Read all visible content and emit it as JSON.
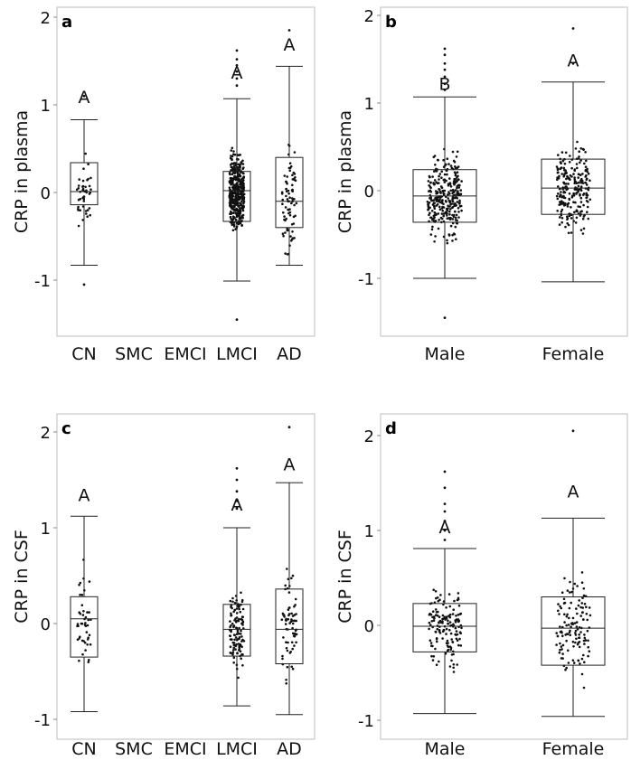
{
  "chart_data": [
    {
      "type": "box",
      "panel_label": "a",
      "ylabel": "CRP in plasma",
      "ylim": [
        -1.6,
        2.0
      ],
      "yticks": [
        -1,
        0,
        1,
        2
      ],
      "ytick_labels": [
        "-1",
        "0",
        "1",
        "2"
      ],
      "categories": [
        "CN",
        "SMC",
        "EMCI",
        "LMCI",
        "AD"
      ],
      "boxes": [
        {
          "category": "CN",
          "whisker_low": -0.83,
          "q1": -0.14,
          "median": 0.01,
          "q3": 0.34,
          "whisker_high": 0.83,
          "letter": "A",
          "letter_y": 1.02,
          "n_points": 45,
          "outliers": [
            -1.05,
            1.1
          ]
        },
        {
          "category": "LMCI",
          "whisker_low": -1.01,
          "q1": -0.33,
          "median": 0.02,
          "q3": 0.24,
          "whisker_high": 1.07,
          "letter": "A",
          "letter_y": 1.3,
          "n_points": 420,
          "outliers": [
            -1.45,
            1.22,
            1.3,
            1.38,
            1.45,
            1.52,
            1.62
          ]
        },
        {
          "category": "AD",
          "whisker_low": -0.83,
          "q1": -0.4,
          "median": -0.1,
          "q3": 0.4,
          "whisker_high": 1.44,
          "letter": "A",
          "letter_y": 1.62,
          "n_points": 80,
          "outliers": [
            1.85
          ]
        }
      ]
    },
    {
      "type": "box",
      "panel_label": "b",
      "ylabel": "CRP in plasma",
      "ylim": [
        -1.6,
        2.0
      ],
      "yticks": [
        -1,
        0,
        1,
        2
      ],
      "ytick_labels": [
        "-1",
        "0",
        "1",
        "2"
      ],
      "categories": [
        "Male",
        "Female"
      ],
      "boxes": [
        {
          "category": "Male",
          "whisker_low": -1.0,
          "q1": -0.36,
          "median": -0.06,
          "q3": 0.24,
          "whisker_high": 1.07,
          "letter": "B",
          "letter_y": 1.15,
          "n_points": 300,
          "outliers": [
            -1.45,
            1.15,
            1.22,
            1.3,
            1.38,
            1.45,
            1.55,
            1.62
          ]
        },
        {
          "category": "Female",
          "whisker_low": -1.04,
          "q1": -0.27,
          "median": 0.03,
          "q3": 0.36,
          "whisker_high": 1.24,
          "letter": "A",
          "letter_y": 1.42,
          "n_points": 240,
          "outliers": [
            1.45,
            1.85
          ]
        }
      ]
    },
    {
      "type": "box",
      "panel_label": "c",
      "ylabel": "CRP in CSF",
      "ylim": [
        -1.25,
        2.2
      ],
      "yticks": [
        -1,
        0,
        1,
        2
      ],
      "ytick_labels": [
        "-1",
        "0",
        "1",
        "2"
      ],
      "categories": [
        "CN",
        "SMC",
        "EMCI",
        "LMCI",
        "AD"
      ],
      "boxes": [
        {
          "category": "CN",
          "whisker_low": -0.92,
          "q1": -0.35,
          "median": 0.05,
          "q3": 0.28,
          "whisker_high": 1.12,
          "letter": "A",
          "letter_y": 1.28,
          "n_points": 45
        },
        {
          "category": "LMCI",
          "whisker_low": -0.86,
          "q1": -0.34,
          "median": -0.06,
          "q3": 0.2,
          "whisker_high": 1.0,
          "letter": "A",
          "letter_y": 1.18,
          "n_points": 120,
          "outliers": [
            1.2,
            1.28,
            1.38,
            1.5,
            1.62
          ]
        },
        {
          "category": "AD",
          "whisker_low": -0.95,
          "q1": -0.42,
          "median": -0.06,
          "q3": 0.36,
          "whisker_high": 1.47,
          "letter": "A",
          "letter_y": 1.6,
          "n_points": 70,
          "outliers": [
            2.05
          ]
        }
      ]
    },
    {
      "type": "box",
      "panel_label": "d",
      "ylabel": "CRP in CSF",
      "ylim": [
        -1.25,
        2.2
      ],
      "yticks": [
        -1,
        0,
        1,
        2
      ],
      "ytick_labels": [
        "-1",
        "0",
        "1",
        "2"
      ],
      "categories": [
        "Male",
        "Female"
      ],
      "boxes": [
        {
          "category": "Male",
          "whisker_low": -0.93,
          "q1": -0.28,
          "median": -0.01,
          "q3": 0.23,
          "whisker_high": 0.81,
          "letter": "A",
          "letter_y": 0.97,
          "n_points": 150,
          "outliers": [
            0.9,
            1.0,
            1.1,
            1.2,
            1.28,
            1.45,
            1.62
          ]
        },
        {
          "category": "Female",
          "whisker_low": -0.96,
          "q1": -0.42,
          "median": -0.03,
          "q3": 0.3,
          "whisker_high": 1.13,
          "letter": "A",
          "letter_y": 1.35,
          "n_points": 130,
          "outliers": [
            2.05
          ]
        }
      ]
    }
  ]
}
